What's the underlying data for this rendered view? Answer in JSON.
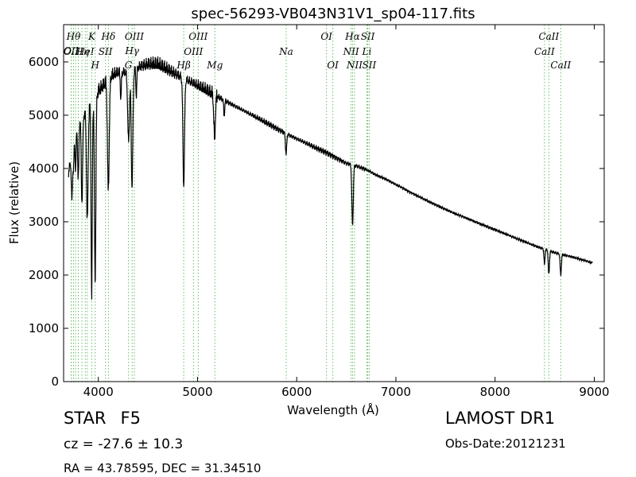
{
  "chart_data": {
    "type": "line",
    "title": "spec-56293-VB043N31V1_sp04-117.fits",
    "xlabel": "Wavelength (Å)",
    "ylabel": "Flux (relative)",
    "xlim": [
      3650,
      9100
    ],
    "ylim": [
      0,
      6700
    ],
    "xticks": [
      4000,
      5000,
      6000,
      7000,
      8000,
      9000
    ],
    "yticks": [
      0,
      1000,
      2000,
      3000,
      4000,
      5000,
      6000
    ],
    "grid": false,
    "continuum": {
      "x": [
        3700,
        3750,
        3800,
        3850,
        3900,
        3950,
        4000,
        4050,
        4100,
        4150,
        4200,
        4300,
        4400,
        4500,
        4600,
        4700,
        4800,
        4900,
        5000,
        5100,
        5200,
        5300,
        5400,
        5500,
        5600,
        5700,
        5800,
        5900,
        6000,
        6100,
        6200,
        6300,
        6400,
        6500,
        6600,
        6700,
        6800,
        6900,
        7000,
        7200,
        7400,
        7600,
        7800,
        8000,
        8200,
        8400,
        8600,
        8800,
        8980
      ],
      "y": [
        3900,
        4500,
        4900,
        5000,
        5150,
        5300,
        5450,
        5550,
        5700,
        5750,
        5800,
        5800,
        5900,
        5950,
        5950,
        5850,
        5750,
        5650,
        5550,
        5450,
        5350,
        5250,
        5150,
        5050,
        4950,
        4850,
        4750,
        4650,
        4560,
        4470,
        4380,
        4300,
        4200,
        4100,
        4050,
        3980,
        3880,
        3800,
        3700,
        3500,
        3320,
        3150,
        3000,
        2850,
        2700,
        2550,
        2420,
        2330,
        2230
      ]
    },
    "absorption_features": [
      {
        "center": 3734,
        "depth": 900,
        "width": 6
      },
      {
        "center": 3750,
        "depth": 500,
        "width": 5
      },
      {
        "center": 3771,
        "depth": 700,
        "width": 5
      },
      {
        "center": 3798,
        "depth": 1100,
        "width": 6
      },
      {
        "center": 3835,
        "depth": 1600,
        "width": 7
      },
      {
        "center": 3889,
        "depth": 2100,
        "width": 8
      },
      {
        "center": 3933,
        "depth": 3700,
        "width": 6
      },
      {
        "center": 3968,
        "depth": 3500,
        "width": 7
      },
      {
        "center": 4101,
        "depth": 2100,
        "width": 9
      },
      {
        "center": 4227,
        "depth": 500,
        "width": 5
      },
      {
        "center": 4305,
        "depth": 1300,
        "width": 9
      },
      {
        "center": 4340,
        "depth": 2200,
        "width": 8
      },
      {
        "center": 4383,
        "depth": 500,
        "width": 5
      },
      {
        "center": 4861,
        "depth": 2000,
        "width": 8
      },
      {
        "center": 5172,
        "depth": 800,
        "width": 8
      },
      {
        "center": 5269,
        "depth": 300,
        "width": 5
      },
      {
        "center": 5893,
        "depth": 400,
        "width": 6
      },
      {
        "center": 6563,
        "depth": 1150,
        "width": 7
      },
      {
        "center": 8498,
        "depth": 300,
        "width": 5
      },
      {
        "center": 8542,
        "depth": 450,
        "width": 6
      },
      {
        "center": 8662,
        "depth": 400,
        "width": 6
      }
    ],
    "line_markers": [
      {
        "x": 3727,
        "row": 2,
        "label": "OII",
        "color": "#66bb66"
      },
      {
        "x": 3727,
        "row": 3,
        "label": "OII",
        "color": "#66bb66"
      },
      {
        "x": 3750,
        "row": 1,
        "label": "Hθ",
        "color": "#66bb66"
      },
      {
        "x": 3771,
        "row": 1,
        "label": "",
        "color": "#66bb66"
      },
      {
        "x": 3798,
        "row": 1,
        "label": "",
        "color": "#66bb66"
      },
      {
        "x": 3835,
        "row": 3,
        "label": "Hη",
        "color": "#66bb66"
      },
      {
        "x": 3869,
        "row": 3,
        "label": "HeI",
        "color": "#66bb66"
      },
      {
        "x": 3889,
        "row": 1,
        "label": "",
        "color": "#66bb66"
      },
      {
        "x": 3934,
        "row": 1,
        "label": "K",
        "color": "#66bb66"
      },
      {
        "x": 3968,
        "row": 4,
        "label": "H",
        "color": "#66bb66"
      },
      {
        "x": 4072,
        "row": 3,
        "label": "SII",
        "color": "#66bb66"
      },
      {
        "x": 4102,
        "row": 1,
        "label": "Hδ",
        "color": "#66bb66"
      },
      {
        "x": 4304,
        "row": 4,
        "label": "G",
        "color": "#66bb66"
      },
      {
        "x": 4341,
        "row": 2,
        "label": "Hγ",
        "color": "#66bb66"
      },
      {
        "x": 4363,
        "row": 1,
        "label": "OIII",
        "color": "#66bb66"
      },
      {
        "x": 4861,
        "row": 4,
        "label": "Hβ",
        "color": "#66bb66"
      },
      {
        "x": 4959,
        "row": 3,
        "label": "OIII",
        "color": "#66bb66"
      },
      {
        "x": 5007,
        "row": 1,
        "label": "OIII",
        "color": "#66bb66"
      },
      {
        "x": 5175,
        "row": 4,
        "label": "Mg",
        "color": "#66bb66"
      },
      {
        "x": 5894,
        "row": 3,
        "label": "Na",
        "color": "#66bb66"
      },
      {
        "x": 6300,
        "row": 1,
        "label": "OI",
        "color": "#66bb66"
      },
      {
        "x": 6364,
        "row": 4,
        "label": "OI",
        "color": "#66bb66"
      },
      {
        "x": 6548,
        "row": 3,
        "label": "NII",
        "color": "#66bb66"
      },
      {
        "x": 6563,
        "row": 1,
        "label": "Hα",
        "color": "#66bb66"
      },
      {
        "x": 6583,
        "row": 4,
        "label": "NII",
        "color": "#66bb66"
      },
      {
        "x": 6707,
        "row": 3,
        "label": "Li",
        "color": "#66bb66"
      },
      {
        "x": 6716,
        "row": 1,
        "label": "SII",
        "color": "#66bb66"
      },
      {
        "x": 6731,
        "row": 4,
        "label": "SII",
        "color": "#66bb66"
      },
      {
        "x": 8498,
        "row": 3,
        "label": "CaII",
        "color": "#66bb66"
      },
      {
        "x": 8542,
        "row": 1,
        "label": "CaII",
        "color": "#66bb66"
      },
      {
        "x": 8662,
        "row": 4,
        "label": "CaII",
        "color": "#66bb66"
      }
    ],
    "colors": {
      "spectrum": "#000000",
      "marker": "#66bb66",
      "frame": "#000000"
    }
  },
  "info": {
    "object_class": "STAR",
    "subclass": "F5",
    "survey": "LAMOST DR1",
    "cz": "cz = -27.6 ± 10.3",
    "obs_date": "Obs-Date:20121231",
    "radec": "RA = 43.78595, DEC = 31.34510"
  }
}
